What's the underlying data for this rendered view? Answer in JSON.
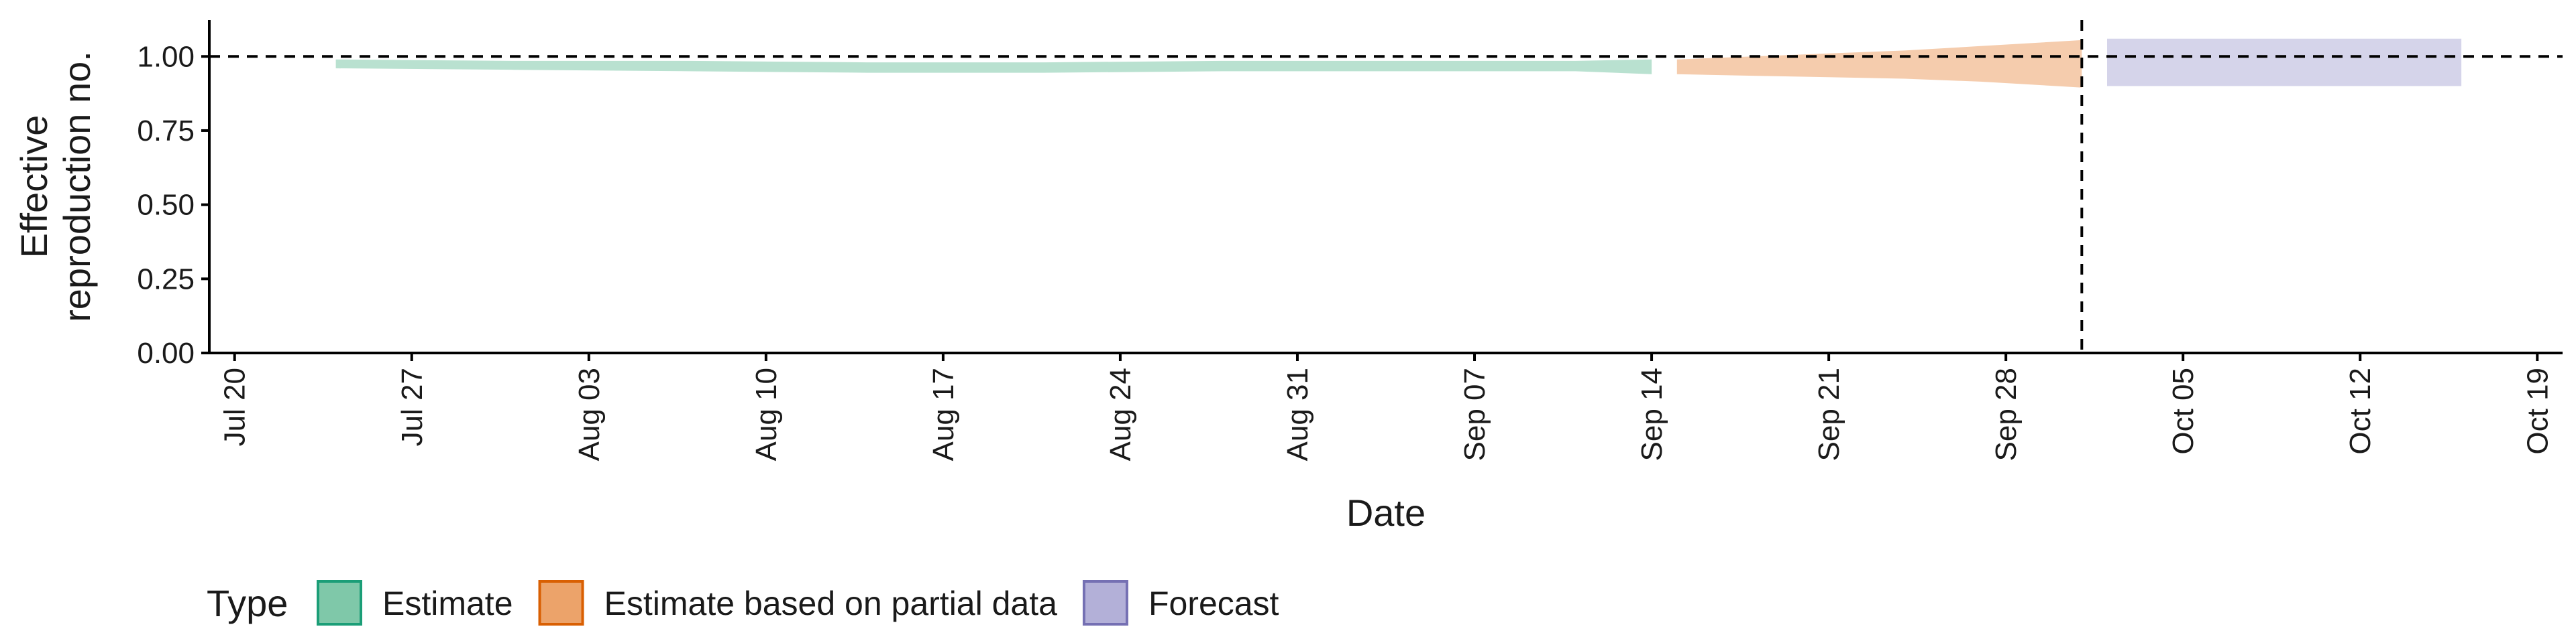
{
  "chart_data": {
    "type": "area",
    "title": "",
    "xlabel": "Date",
    "ylabel_lines": [
      "Effective",
      "reproduction no."
    ],
    "x_ticks": [
      "Jul 20",
      "Jul 27",
      "Aug 03",
      "Aug 10",
      "Aug 17",
      "Aug 24",
      "Aug 31",
      "Sep 07",
      "Sep 14",
      "Sep 21",
      "Sep 28",
      "Oct 05",
      "Oct 12",
      "Oct 19"
    ],
    "y_ticks": [
      "0.00",
      "0.25",
      "0.50",
      "0.75",
      "1.00"
    ],
    "ylim": [
      0,
      1.1
    ],
    "xlim": [
      "2020-07-19",
      "2020-10-20"
    ],
    "reference_line_y": 1.0,
    "reference_line_x": "2020-10-01",
    "series": [
      {
        "name": "Estimate",
        "color": "#1b9e77",
        "fill": "#7fc8a9",
        "dates": [
          "2020-07-24",
          "2020-07-31",
          "2020-08-07",
          "2020-08-14",
          "2020-08-21",
          "2020-08-28",
          "2020-09-04",
          "2020-09-11",
          "2020-09-14"
        ],
        "lower": [
          0.96,
          0.955,
          0.95,
          0.945,
          0.945,
          0.95,
          0.95,
          0.95,
          0.94
        ],
        "upper": [
          0.99,
          0.985,
          0.985,
          0.98,
          0.98,
          0.985,
          0.985,
          0.985,
          0.99
        ]
      },
      {
        "name": "Estimate based on partial data",
        "color": "#d95f02",
        "fill": "#eca36a",
        "dates": [
          "2020-09-15",
          "2020-09-18",
          "2020-09-21",
          "2020-09-24",
          "2020-09-27",
          "2020-09-30",
          "2020-10-01"
        ],
        "lower": [
          0.94,
          0.935,
          0.93,
          0.925,
          0.915,
          0.9,
          0.895
        ],
        "upper": [
          0.99,
          1.0,
          1.01,
          1.02,
          1.035,
          1.05,
          1.055
        ]
      },
      {
        "name": "Forecast",
        "color": "#7570b3",
        "fill": "#b3b0d8",
        "dates": [
          "2020-10-02",
          "2020-10-16"
        ],
        "lower": [
          0.9,
          0.9
        ],
        "upper": [
          1.06,
          1.06
        ]
      }
    ],
    "legend": {
      "title": "Type",
      "position": "bottom-left",
      "items": [
        "Estimate",
        "Estimate based on partial data",
        "Forecast"
      ]
    },
    "grid": false
  }
}
